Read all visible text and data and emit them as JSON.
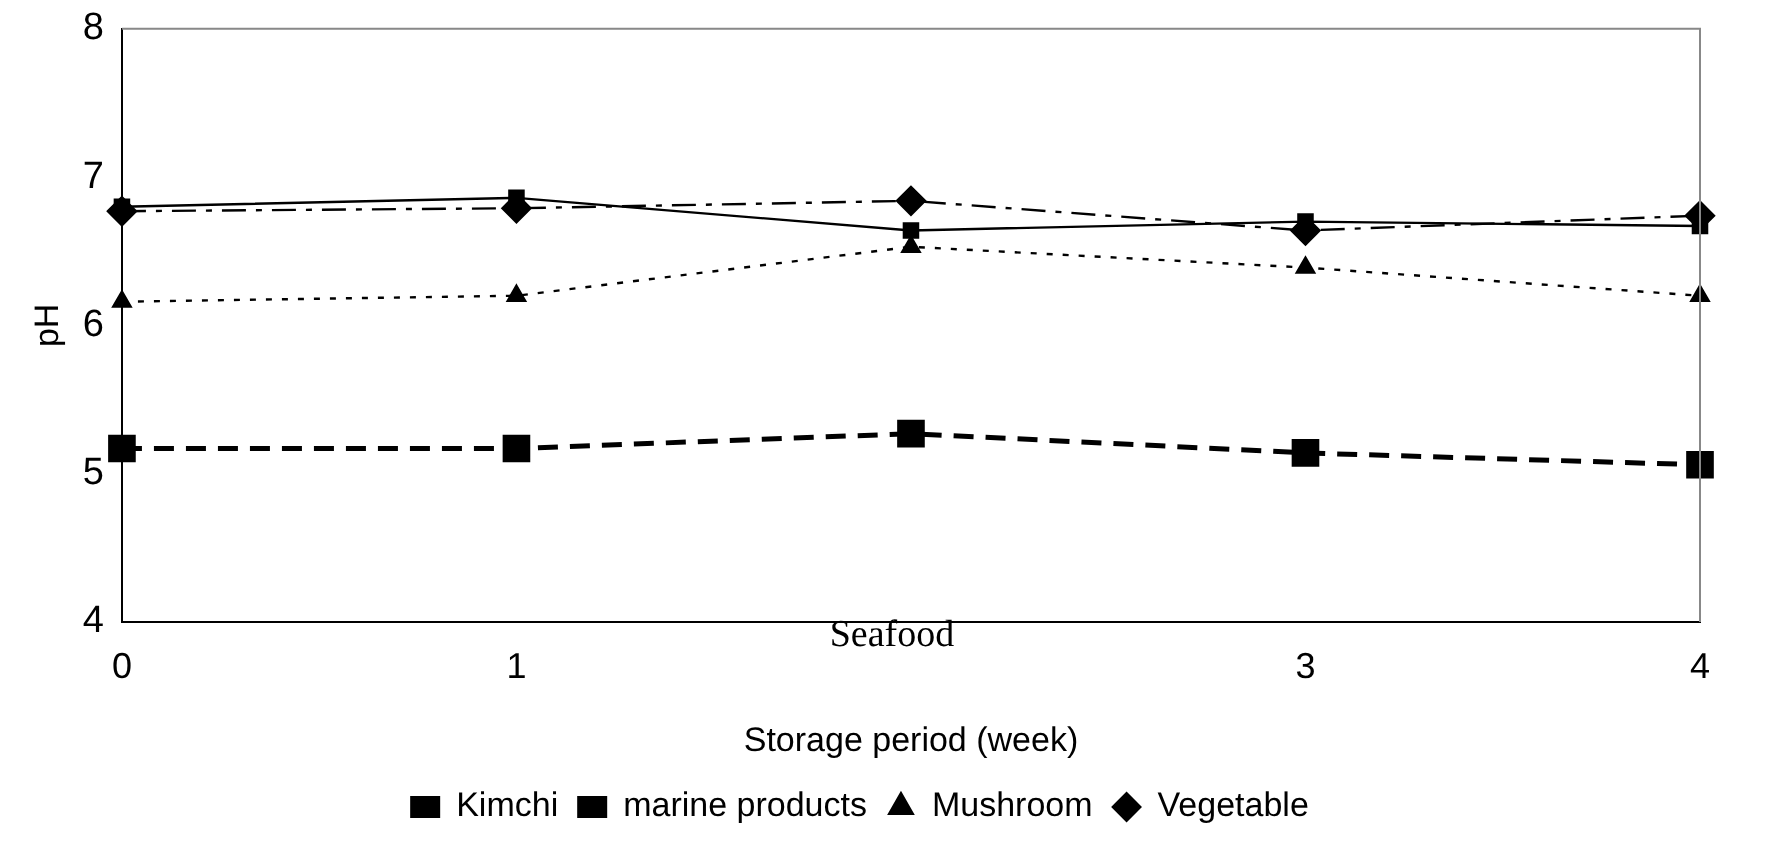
{
  "chart_data": {
    "type": "line",
    "xlabel": "Storage period (week)",
    "ylabel": "pH",
    "categories": [
      "0",
      "1",
      null,
      "3",
      "4"
    ],
    "ylim": [
      4,
      8
    ],
    "yticks": [
      4,
      5,
      6,
      7,
      8
    ],
    "grid": false,
    "legend": "bottom",
    "annotations": [
      "Seafood"
    ],
    "series": [
      {
        "name": "Kimchi",
        "color": "#000000",
        "marker": "square",
        "line_style": "dashed",
        "values": [
          5.17,
          5.17,
          5.27,
          5.14,
          5.06
        ]
      },
      {
        "name": "marine products",
        "color": "#000000",
        "marker": "square",
        "line_style": "solid",
        "values": [
          6.8,
          6.86,
          6.64,
          6.7,
          6.67
        ]
      },
      {
        "name": "Mushroom",
        "color": "#000000",
        "marker": "triangle",
        "line_style": "dotted",
        "values": [
          6.16,
          6.2,
          6.53,
          6.39,
          6.2
        ]
      },
      {
        "name": "Vegetable",
        "color": "#000000",
        "marker": "diamond",
        "line_style": "dashdot",
        "values": [
          6.77,
          6.79,
          6.84,
          6.64,
          6.74
        ]
      }
    ]
  }
}
